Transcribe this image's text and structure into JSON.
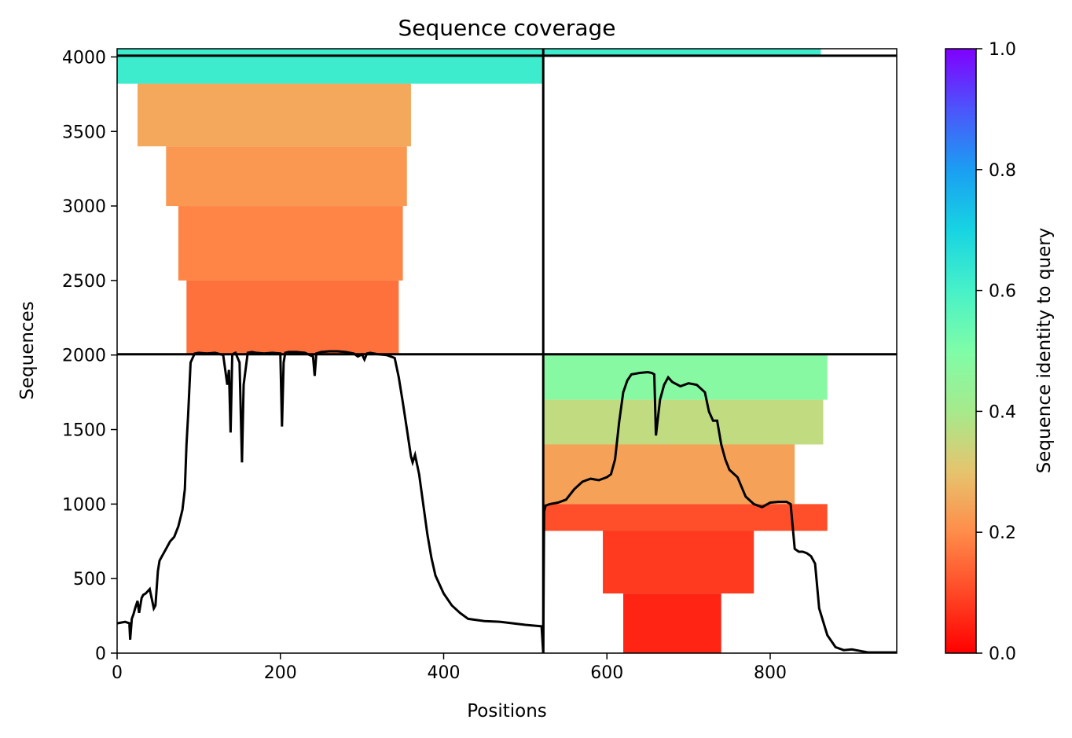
{
  "chart_data": {
    "type": "heatmap",
    "title": "Sequence coverage",
    "xlabel": "Positions",
    "ylabel": "Sequences",
    "xlim": [
      0,
      955
    ],
    "ylim": [
      0,
      4055
    ],
    "xticks": [
      "0",
      "200",
      "400",
      "600",
      "800"
    ],
    "xtick_values": [
      0,
      200,
      400,
      600,
      800
    ],
    "yticks": [
      "0",
      "500",
      "1000",
      "1500",
      "2000",
      "2500",
      "3000",
      "3500",
      "4000"
    ],
    "ytick_values": [
      0,
      500,
      1000,
      1500,
      2000,
      2500,
      3000,
      3500,
      4000
    ],
    "colorbar": {
      "label": "Sequence identity to query",
      "range": [
        0,
        1
      ],
      "ticks": [
        "0.0",
        "0.2",
        "0.4",
        "0.6",
        "0.8",
        "1.0"
      ],
      "tick_values": [
        0,
        0.2,
        0.4,
        0.6,
        0.8,
        1.0
      ],
      "colormap": "rainbow_r"
    },
    "dividers": {
      "vertical_x": 522,
      "horizontal_y": [
        2005,
        4008
      ]
    },
    "coverage_blocks": [
      {
        "x_start": 0,
        "x_end": 522,
        "seq_start": 3820,
        "seq_end": 4055,
        "identity": 0.62
      },
      {
        "x_start": 522,
        "x_end": 862,
        "seq_start": 4008,
        "seq_end": 4055,
        "identity": 0.62
      },
      {
        "x_start": 25,
        "x_end": 360,
        "seq_start": 3400,
        "seq_end": 3820,
        "identity": 0.25
      },
      {
        "x_start": 60,
        "x_end": 355,
        "seq_start": 3000,
        "seq_end": 3400,
        "identity": 0.22
      },
      {
        "x_start": 75,
        "x_end": 350,
        "seq_start": 2500,
        "seq_end": 3000,
        "identity": 0.19
      },
      {
        "x_start": 85,
        "x_end": 345,
        "seq_start": 2005,
        "seq_end": 2500,
        "identity": 0.16
      },
      {
        "x_start": 522,
        "x_end": 870,
        "seq_start": 1700,
        "seq_end": 2005,
        "identity": 0.48
      },
      {
        "x_start": 522,
        "x_end": 865,
        "seq_start": 1400,
        "seq_end": 1700,
        "identity": 0.36
      },
      {
        "x_start": 522,
        "x_end": 830,
        "seq_start": 1000,
        "seq_end": 1400,
        "identity": 0.24
      },
      {
        "x_start": 522,
        "x_end": 870,
        "seq_start": 820,
        "seq_end": 1000,
        "identity": 0.11
      },
      {
        "x_start": 595,
        "x_end": 780,
        "seq_start": 400,
        "seq_end": 820,
        "identity": 0.08
      },
      {
        "x_start": 620,
        "x_end": 740,
        "seq_start": 0,
        "seq_end": 400,
        "identity": 0.05
      }
    ],
    "series": [
      {
        "type": "line",
        "color": "#000000",
        "x": [
          0,
          5,
          10,
          15,
          16,
          18,
          20,
          22,
          25,
          27,
          30,
          32,
          35,
          40,
          45,
          47,
          50,
          52,
          55,
          60,
          65,
          70,
          75,
          80,
          83,
          85,
          87,
          90,
          95,
          100,
          110,
          120,
          130,
          135,
          137,
          139,
          141,
          143,
          145,
          150,
          153,
          155,
          160,
          165,
          170,
          180,
          190,
          200,
          202,
          204,
          206,
          210,
          220,
          230,
          240,
          242,
          244,
          250,
          260,
          270,
          280,
          285,
          290,
          295,
          300,
          303,
          306,
          310,
          315,
          320,
          330,
          340,
          345,
          350,
          355,
          360,
          362,
          365,
          370,
          375,
          380,
          385,
          390,
          400,
          410,
          420,
          430,
          450,
          470,
          500,
          520,
          522,
          523,
          525,
          530,
          540,
          550,
          560,
          570,
          580,
          590,
          600,
          605,
          610,
          615,
          620,
          625,
          630,
          640,
          650,
          655,
          658,
          660,
          665,
          670,
          675,
          680,
          690,
          700,
          710,
          720,
          725,
          730,
          735,
          740,
          745,
          750,
          760,
          770,
          780,
          790,
          800,
          810,
          820,
          825,
          830,
          835,
          840,
          845,
          850,
          855,
          860,
          870,
          880,
          890,
          900,
          910,
          920,
          955
        ],
        "y": [
          200,
          205,
          210,
          200,
          90,
          230,
          260,
          300,
          350,
          270,
          370,
          390,
          400,
          430,
          300,
          320,
          550,
          620,
          650,
          700,
          750,
          780,
          850,
          960,
          1100,
          1400,
          1600,
          1950,
          2010,
          2015,
          2010,
          2015,
          2000,
          1800,
          1900,
          1480,
          2000,
          2010,
          2015,
          1950,
          1280,
          1800,
          2015,
          2020,
          2015,
          2010,
          2015,
          2010,
          1520,
          1950,
          2015,
          2020,
          2020,
          2015,
          1990,
          1860,
          2010,
          2020,
          2025,
          2025,
          2020,
          2015,
          2010,
          1990,
          2005,
          1970,
          2010,
          2015,
          2010,
          2005,
          2000,
          1980,
          1850,
          1680,
          1500,
          1320,
          1280,
          1330,
          1200,
          1000,
          800,
          640,
          520,
          400,
          320,
          270,
          230,
          215,
          210,
          190,
          180,
          0,
          950,
          990,
          1000,
          1010,
          1030,
          1100,
          1150,
          1170,
          1160,
          1180,
          1200,
          1300,
          1550,
          1750,
          1830,
          1870,
          1880,
          1885,
          1880,
          1870,
          1460,
          1700,
          1800,
          1850,
          1820,
          1790,
          1810,
          1800,
          1750,
          1620,
          1560,
          1560,
          1400,
          1300,
          1230,
          1180,
          1050,
          1000,
          980,
          1010,
          1015,
          1015,
          1000,
          700,
          680,
          680,
          670,
          650,
          600,
          300,
          120,
          40,
          20,
          25,
          15,
          5,
          5
        ]
      }
    ]
  }
}
